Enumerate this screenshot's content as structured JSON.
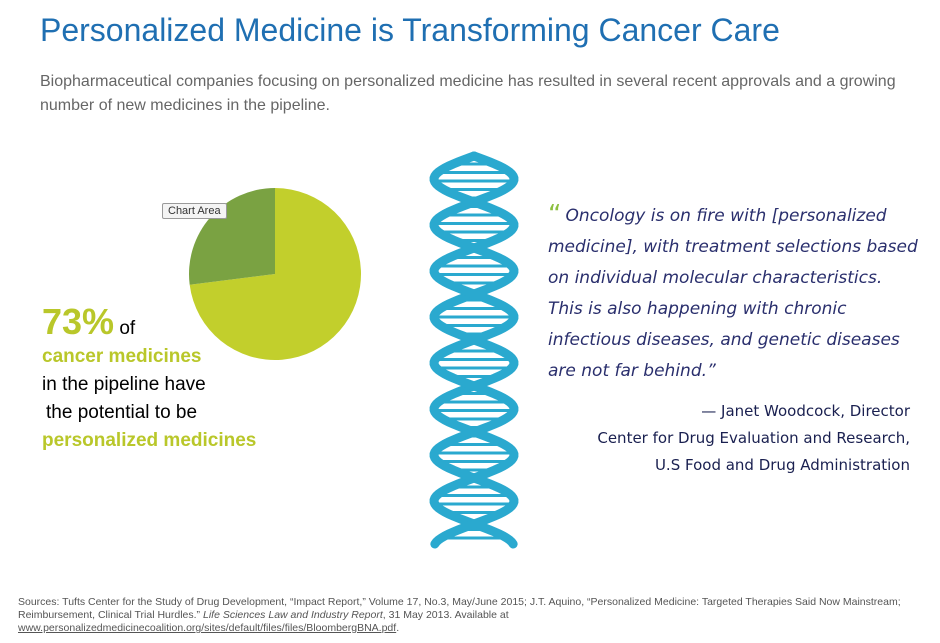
{
  "header": {
    "title": "Personalized Medicine is Transforming Cancer Care",
    "subtitle": "Biopharmaceutical companies focusing on personalized medicine has resulted  in several recent approvals and a growing number of new medicines in the pipeline."
  },
  "chart_data": {
    "type": "pie",
    "tooltip": "Chart Area",
    "slices": [
      {
        "value": 73,
        "color": "#c2cf2c"
      },
      {
        "value": 27,
        "color": "#7aa242"
      }
    ],
    "start_angle_deg": 270,
    "direction": "clockwise"
  },
  "stat": {
    "percent": "73%",
    "of": " of",
    "line1": "cancer medicines",
    "line2": "in the pipeline have",
    "line3": "the potential to be",
    "line4": "personalized medicines"
  },
  "quote": {
    "mark": "“",
    "text": "Oncology is on fire with [personalized medicine], with treatment selections based on individual molecular characteristics. This is also happening with chronic infectious diseases, and genetic diseases are not far behind.”",
    "author": "— Janet Woodcock, Director",
    "org": "Center for Drug Evaluation and Research,",
    "agency": "U.S Food and Drug Administration"
  },
  "sources": {
    "text_a": "Sources: Tufts Center for the Study of Drug Development, “Impact Report,” Volume 17, No.3, May/June 2015; J.T. Aquino, “Personalized Medicine: Targeted Therapies Said Now Mainstream; Reimbursement, Clinical Trial Hurdles.”",
    "journal": "Life Sciences Law and Industry Report",
    "text_b": ", 31 May 2013. Available at",
    "url": "www.personalizedmedicinecoalition.org/sites/default/files/files/BloombergBNA.pdf",
    "tail": "."
  },
  "colors": {
    "title": "#1f6fb2",
    "accent_green": "#b9c72a",
    "dna": "#2aa9cf",
    "quote": "#2a2f6d"
  },
  "icons": {
    "dna": "dna-helix-icon"
  }
}
